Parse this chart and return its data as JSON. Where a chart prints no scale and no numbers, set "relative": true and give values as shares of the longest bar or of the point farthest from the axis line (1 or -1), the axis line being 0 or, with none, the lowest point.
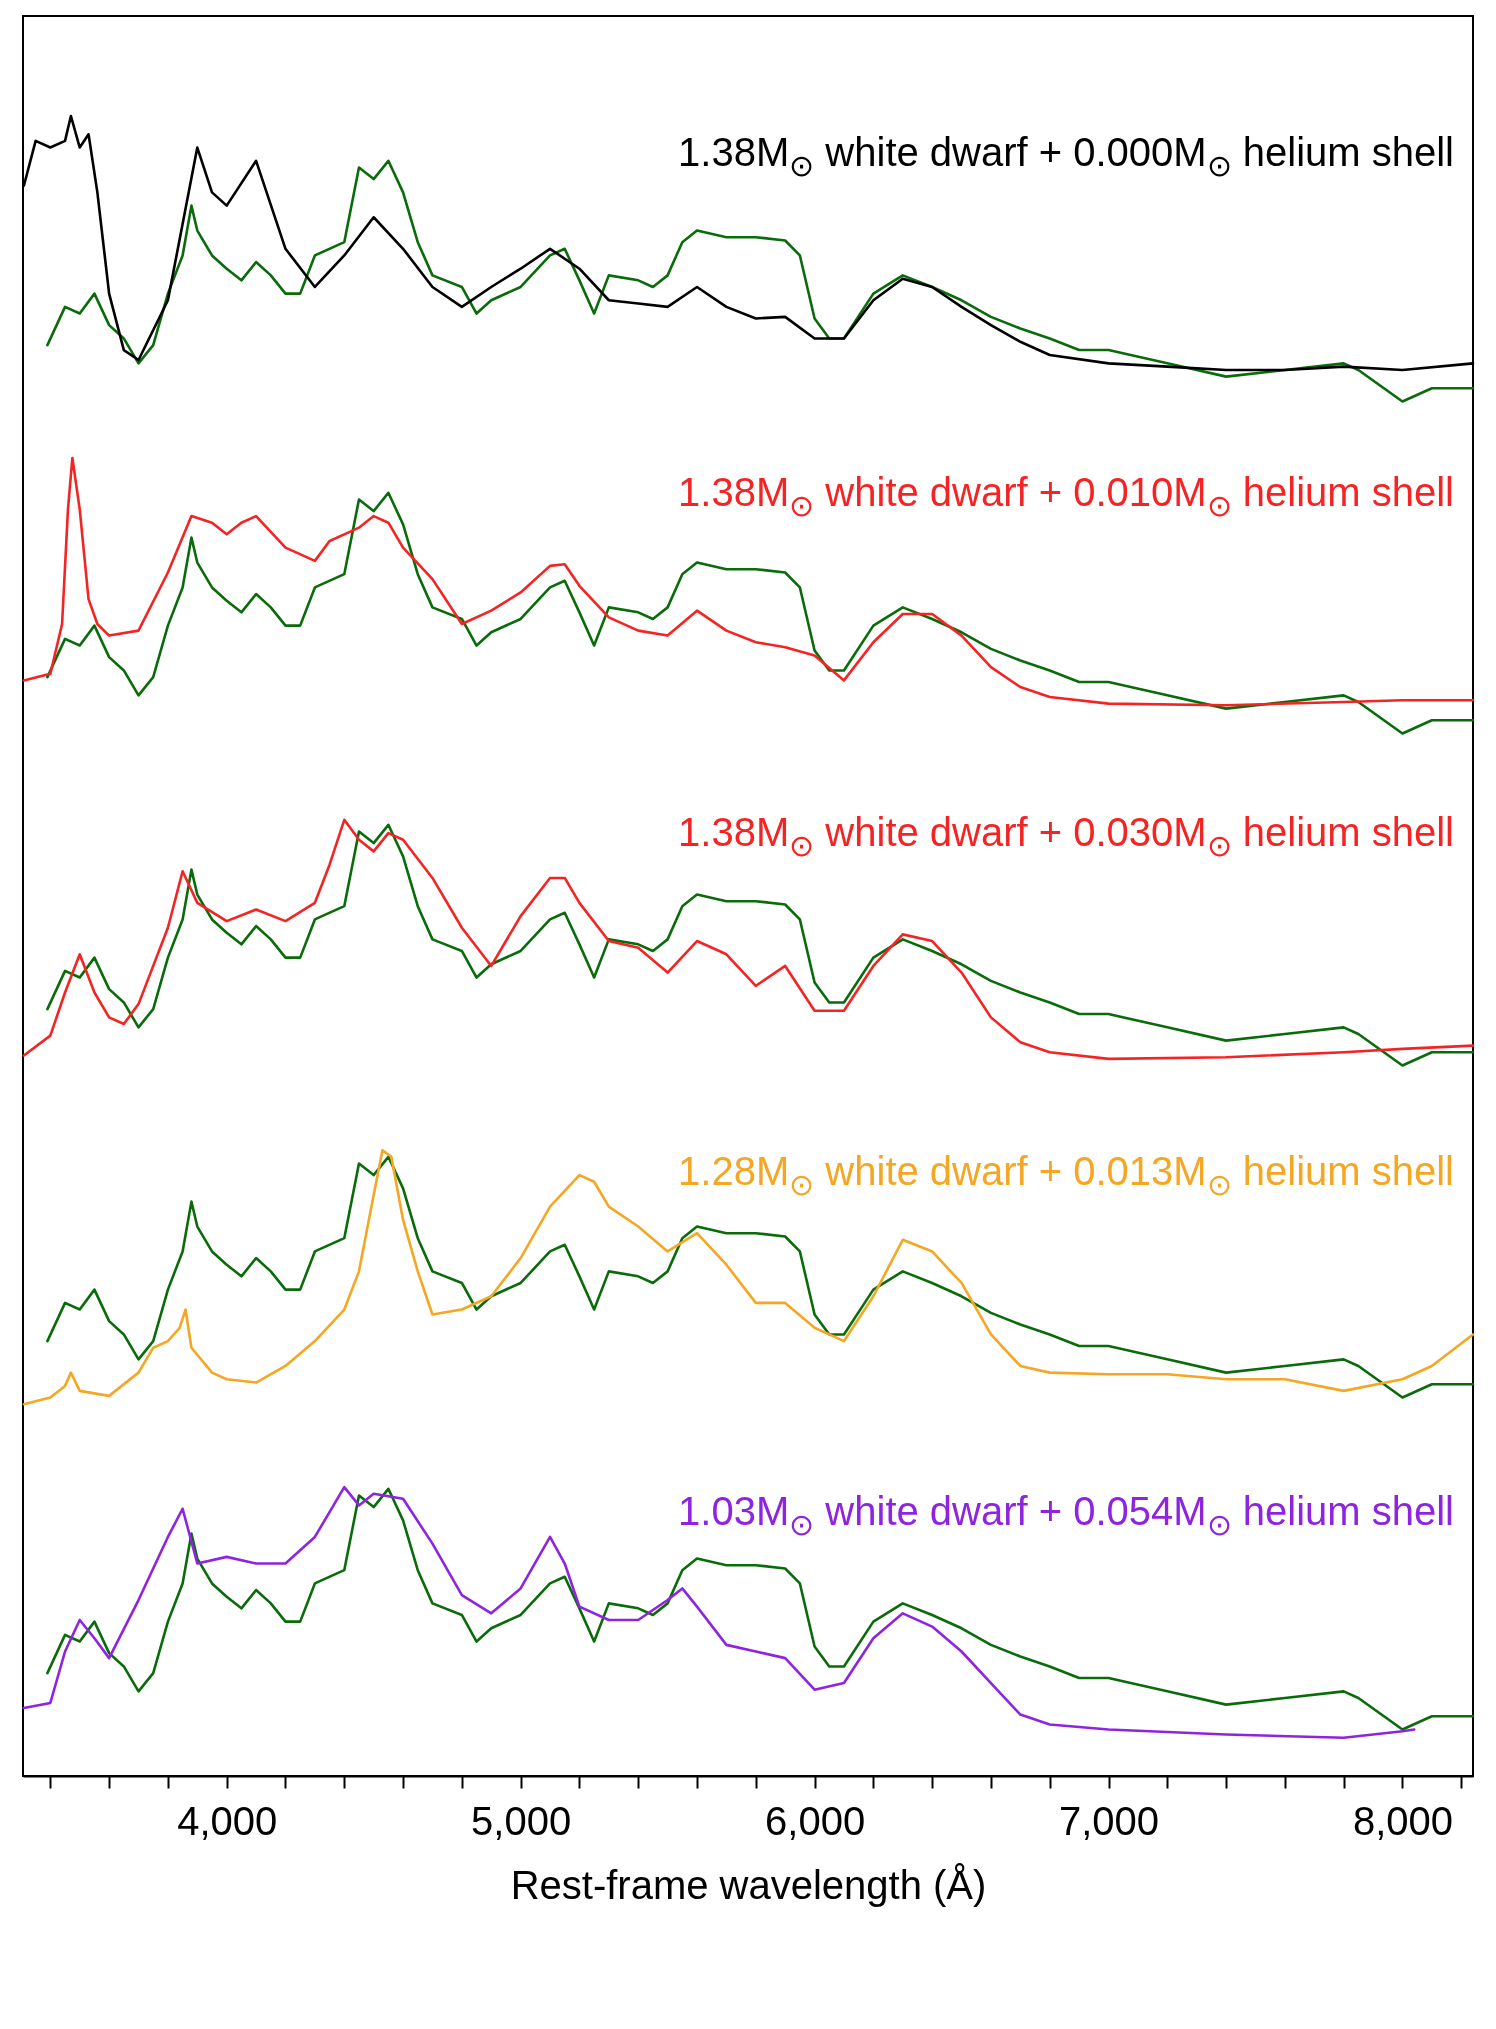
{
  "chart_data": {
    "type": "line",
    "relative": true,
    "xlabel": "Rest-frame wavelength (Å)",
    "xlim": [
      3307,
      8240
    ],
    "xticks": [
      {
        "value": 3400,
        "label": null
      },
      {
        "value": 3600,
        "label": null
      },
      {
        "value": 3800,
        "label": null
      },
      {
        "value": 4000,
        "label": "4,000"
      },
      {
        "value": 4200,
        "label": null
      },
      {
        "value": 4400,
        "label": null
      },
      {
        "value": 4600,
        "label": null
      },
      {
        "value": 4800,
        "label": null
      },
      {
        "value": 5000,
        "label": "5,000"
      },
      {
        "value": 5200,
        "label": null
      },
      {
        "value": 5400,
        "label": null
      },
      {
        "value": 5600,
        "label": null
      },
      {
        "value": 5800,
        "label": null
      },
      {
        "value": 6000,
        "label": "6,000"
      },
      {
        "value": 6200,
        "label": null
      },
      {
        "value": 6400,
        "label": null
      },
      {
        "value": 6600,
        "label": null
      },
      {
        "value": 6800,
        "label": null
      },
      {
        "value": 7000,
        "label": "7,000"
      },
      {
        "value": 7200,
        "label": null
      },
      {
        "value": 7400,
        "label": null
      },
      {
        "value": 7600,
        "label": null
      },
      {
        "value": 7800,
        "label": null
      },
      {
        "value": 8000,
        "label": "8,000"
      },
      {
        "value": 8200,
        "label": null
      }
    ],
    "x": [
      3390,
      3450,
      3500,
      3550,
      3600,
      3650,
      3700,
      3750,
      3800,
      3850,
      3880,
      3900,
      3950,
      4000,
      4050,
      4100,
      4150,
      4200,
      4250,
      4300,
      4400,
      4450,
      4500,
      4550,
      4600,
      4650,
      4700,
      4800,
      4850,
      4900,
      5000,
      5100,
      5150,
      5200,
      5250,
      5300,
      5400,
      5450,
      5500,
      5550,
      5600,
      5700,
      5800,
      5900,
      5950,
      6000,
      6050,
      6100,
      6200,
      6300,
      6400,
      6500,
      6600,
      6700,
      6800,
      6900,
      7000,
      7200,
      7400,
      7600,
      7800,
      7850,
      8000,
      8100,
      8240
    ],
    "line_style": "solid",
    "marker": "none",
    "series": [
      {
        "color": "#0a6b0a",
        "values": [
          0.862,
          0.885,
          0.881,
          0.893,
          0.874,
          0.866,
          0.851,
          0.862,
          0.893,
          0.916,
          0.946,
          0.931,
          0.916,
          0.908,
          0.901,
          0.912,
          0.904,
          0.893,
          0.893,
          0.916,
          0.924,
          0.969,
          0.962,
          0.973,
          0.954,
          0.924,
          0.904,
          0.897,
          0.881,
          0.889,
          0.897,
          0.916,
          0.92,
          0.901,
          0.881,
          0.904,
          0.901,
          0.897,
          0.904,
          0.924,
          0.931,
          0.927,
          0.927,
          0.925,
          0.916,
          0.878,
          0.866,
          0.866,
          0.893,
          0.904,
          0.897,
          0.889,
          0.879,
          0.872,
          0.866,
          0.859,
          0.859,
          0.851,
          0.843,
          0.847,
          0.851,
          0.847,
          0.828,
          0.836,
          0.836
        ]
      },
      {
        "name": "1.38M$_{⊙}$ white dwarf + 0.000M$_{⊙}$ helium shell",
        "color": "#000000",
        "x": [
          3310,
          3350,
          3400,
          3450,
          3470,
          3500,
          3530,
          3560,
          3600,
          3650,
          3700,
          3800,
          3900,
          3950,
          4000,
          4100,
          4200,
          4300,
          4400,
          4500,
          4600,
          4700,
          4800,
          4900,
          5000,
          5100,
          5200,
          5300,
          5400,
          5500,
          5600,
          5700,
          5800,
          5900,
          6000,
          6100,
          6200,
          6300,
          6400,
          6500,
          6600,
          6700,
          6800,
          7000,
          7200,
          7400,
          7600,
          7800,
          8000,
          8240
        ],
        "values": [
          0.958,
          0.985,
          0.981,
          0.985,
          1.0,
          0.981,
          0.989,
          0.954,
          0.893,
          0.859,
          0.853,
          0.889,
          0.981,
          0.954,
          0.946,
          0.973,
          0.92,
          0.897,
          0.916,
          0.939,
          0.92,
          0.897,
          0.885,
          0.897,
          0.908,
          0.92,
          0.908,
          0.889,
          0.887,
          0.885,
          0.897,
          0.885,
          0.878,
          0.879,
          0.866,
          0.866,
          0.889,
          0.902,
          0.897,
          0.885,
          0.874,
          0.864,
          0.856,
          0.851,
          0.849,
          0.847,
          0.847,
          0.849,
          0.847,
          0.851
        ]
      },
      {
        "color": "#0a6b0a",
        "values": [
          0.662,
          0.685,
          0.681,
          0.693,
          0.674,
          0.666,
          0.651,
          0.662,
          0.693,
          0.716,
          0.746,
          0.731,
          0.716,
          0.708,
          0.701,
          0.712,
          0.704,
          0.693,
          0.693,
          0.716,
          0.724,
          0.769,
          0.762,
          0.773,
          0.754,
          0.724,
          0.704,
          0.697,
          0.681,
          0.689,
          0.697,
          0.716,
          0.72,
          0.701,
          0.681,
          0.704,
          0.701,
          0.697,
          0.704,
          0.724,
          0.731,
          0.727,
          0.727,
          0.725,
          0.716,
          0.678,
          0.666,
          0.666,
          0.693,
          0.704,
          0.697,
          0.689,
          0.679,
          0.672,
          0.666,
          0.659,
          0.659,
          0.651,
          0.643,
          0.647,
          0.651,
          0.647,
          0.628,
          0.636,
          0.636
        ]
      },
      {
        "name": "1.38M$_{⊙}$ white dwarf + 0.010M$_{⊙}$ helium shell",
        "color": "#f42424",
        "x": [
          3310,
          3400,
          3440,
          3460,
          3475,
          3500,
          3530,
          3560,
          3600,
          3700,
          3800,
          3880,
          3950,
          4000,
          4050,
          4100,
          4200,
          4300,
          4350,
          4400,
          4450,
          4500,
          4550,
          4600,
          4700,
          4800,
          4900,
          5000,
          5100,
          5150,
          5200,
          5300,
          5400,
          5500,
          5600,
          5700,
          5800,
          5900,
          6000,
          6100,
          6200,
          6300,
          6400,
          6500,
          6600,
          6700,
          6800,
          7000,
          7400,
          7800,
          8000,
          8240
        ],
        "values": [
          0.66,
          0.664,
          0.694,
          0.763,
          0.794,
          0.763,
          0.709,
          0.694,
          0.687,
          0.69,
          0.725,
          0.759,
          0.755,
          0.748,
          0.755,
          0.759,
          0.74,
          0.732,
          0.744,
          0.748,
          0.752,
          0.759,
          0.755,
          0.74,
          0.721,
          0.694,
          0.702,
          0.713,
          0.729,
          0.73,
          0.717,
          0.698,
          0.69,
          0.687,
          0.702,
          0.69,
          0.683,
          0.68,
          0.675,
          0.66,
          0.683,
          0.7,
          0.7,
          0.687,
          0.668,
          0.656,
          0.65,
          0.646,
          0.645,
          0.647,
          0.648,
          0.648
        ]
      },
      {
        "color": "#0a6b0a",
        "values": [
          0.462,
          0.485,
          0.481,
          0.493,
          0.474,
          0.466,
          0.451,
          0.462,
          0.493,
          0.516,
          0.546,
          0.531,
          0.516,
          0.508,
          0.501,
          0.512,
          0.504,
          0.493,
          0.493,
          0.516,
          0.524,
          0.569,
          0.562,
          0.573,
          0.554,
          0.524,
          0.504,
          0.497,
          0.481,
          0.489,
          0.497,
          0.516,
          0.52,
          0.501,
          0.481,
          0.504,
          0.501,
          0.497,
          0.504,
          0.524,
          0.531,
          0.527,
          0.527,
          0.525,
          0.516,
          0.478,
          0.466,
          0.466,
          0.493,
          0.504,
          0.497,
          0.489,
          0.479,
          0.472,
          0.466,
          0.459,
          0.459,
          0.451,
          0.443,
          0.447,
          0.451,
          0.447,
          0.428,
          0.436,
          0.436
        ]
      },
      {
        "name": "1.38M$_{⊙}$ white dwarf + 0.030M$_{⊙}$ helium shell",
        "color": "#f42424",
        "x": [
          3310,
          3400,
          3450,
          3500,
          3550,
          3600,
          3650,
          3700,
          3800,
          3850,
          3900,
          4000,
          4100,
          4200,
          4300,
          4350,
          4400,
          4450,
          4500,
          4550,
          4600,
          4700,
          4800,
          4900,
          5000,
          5100,
          5150,
          5200,
          5300,
          5400,
          5500,
          5600,
          5700,
          5800,
          5900,
          6000,
          6100,
          6200,
          6300,
          6400,
          6500,
          6600,
          6700,
          6800,
          7000,
          7400,
          7800,
          8000,
          8240
        ],
        "values": [
          0.434,
          0.446,
          0.472,
          0.495,
          0.472,
          0.457,
          0.453,
          0.465,
          0.511,
          0.545,
          0.526,
          0.515,
          0.522,
          0.515,
          0.526,
          0.549,
          0.576,
          0.564,
          0.557,
          0.568,
          0.564,
          0.541,
          0.511,
          0.488,
          0.518,
          0.541,
          0.541,
          0.526,
          0.503,
          0.499,
          0.484,
          0.503,
          0.495,
          0.476,
          0.488,
          0.461,
          0.461,
          0.488,
          0.507,
          0.503,
          0.484,
          0.457,
          0.442,
          0.436,
          0.432,
          0.433,
          0.436,
          0.438,
          0.44
        ]
      },
      {
        "color": "#0a6b0a",
        "values": [
          0.262,
          0.285,
          0.281,
          0.293,
          0.274,
          0.266,
          0.251,
          0.262,
          0.293,
          0.316,
          0.346,
          0.331,
          0.316,
          0.308,
          0.301,
          0.312,
          0.304,
          0.293,
          0.293,
          0.316,
          0.324,
          0.369,
          0.362,
          0.373,
          0.354,
          0.324,
          0.304,
          0.297,
          0.281,
          0.289,
          0.297,
          0.316,
          0.32,
          0.301,
          0.281,
          0.304,
          0.301,
          0.297,
          0.304,
          0.324,
          0.331,
          0.327,
          0.327,
          0.325,
          0.316,
          0.278,
          0.266,
          0.266,
          0.293,
          0.304,
          0.297,
          0.289,
          0.279,
          0.272,
          0.266,
          0.259,
          0.259,
          0.251,
          0.243,
          0.247,
          0.251,
          0.247,
          0.228,
          0.236,
          0.236
        ]
      },
      {
        "name": "1.28M$_{⊙}$ white dwarf + 0.013M$_{⊙}$ helium shell",
        "color": "#f5a623",
        "x": [
          3310,
          3400,
          3450,
          3470,
          3500,
          3600,
          3700,
          3750,
          3800,
          3840,
          3860,
          3880,
          3950,
          4000,
          4100,
          4200,
          4300,
          4400,
          4450,
          4500,
          4530,
          4560,
          4600,
          4650,
          4700,
          4800,
          4900,
          5000,
          5100,
          5200,
          5250,
          5300,
          5400,
          5500,
          5600,
          5700,
          5800,
          5900,
          6000,
          6100,
          6200,
          6300,
          6400,
          6500,
          6600,
          6700,
          6800,
          7000,
          7200,
          7400,
          7600,
          7800,
          8000,
          8100,
          8240
        ],
        "values": [
          0.224,
          0.228,
          0.235,
          0.243,
          0.232,
          0.229,
          0.243,
          0.258,
          0.262,
          0.27,
          0.281,
          0.258,
          0.243,
          0.239,
          0.237,
          0.247,
          0.262,
          0.281,
          0.304,
          0.35,
          0.377,
          0.373,
          0.335,
          0.304,
          0.278,
          0.281,
          0.289,
          0.312,
          0.343,
          0.362,
          0.358,
          0.343,
          0.331,
          0.316,
          0.327,
          0.308,
          0.285,
          0.285,
          0.27,
          0.262,
          0.289,
          0.323,
          0.316,
          0.297,
          0.266,
          0.247,
          0.243,
          0.242,
          0.242,
          0.239,
          0.239,
          0.232,
          0.239,
          0.247,
          0.266
        ]
      },
      {
        "color": "#0a6b0a",
        "values": [
          0.062,
          0.085,
          0.081,
          0.093,
          0.074,
          0.066,
          0.051,
          0.062,
          0.093,
          0.116,
          0.146,
          0.131,
          0.116,
          0.108,
          0.101,
          0.112,
          0.104,
          0.093,
          0.093,
          0.116,
          0.124,
          0.169,
          0.162,
          0.173,
          0.154,
          0.124,
          0.104,
          0.097,
          0.081,
          0.089,
          0.097,
          0.116,
          0.12,
          0.101,
          0.081,
          0.104,
          0.101,
          0.097,
          0.104,
          0.124,
          0.131,
          0.127,
          0.127,
          0.125,
          0.116,
          0.078,
          0.066,
          0.066,
          0.093,
          0.104,
          0.097,
          0.089,
          0.079,
          0.072,
          0.066,
          0.059,
          0.059,
          0.051,
          0.043,
          0.047,
          0.051,
          0.047,
          0.028,
          0.036,
          0.036
        ]
      },
      {
        "name": "1.03M$_{⊙}$ white dwarf + 0.054M$_{⊙}$ helium shell",
        "color": "#8e24e0",
        "x": [
          3310,
          3400,
          3450,
          3500,
          3550,
          3600,
          3700,
          3800,
          3850,
          3900,
          4000,
          4100,
          4200,
          4300,
          4400,
          4450,
          4500,
          4600,
          4700,
          4800,
          4900,
          5000,
          5100,
          5150,
          5200,
          5300,
          5400,
          5500,
          5550,
          5600,
          5700,
          5800,
          5900,
          6000,
          6100,
          6200,
          6300,
          6400,
          6500,
          6600,
          6700,
          6800,
          7000,
          7400,
          7800,
          8000,
          8040
        ],
        "values": [
          0.041,
          0.044,
          0.075,
          0.094,
          0.083,
          0.071,
          0.106,
          0.144,
          0.161,
          0.128,
          0.132,
          0.128,
          0.128,
          0.144,
          0.174,
          0.163,
          0.17,
          0.167,
          0.14,
          0.109,
          0.098,
          0.113,
          0.144,
          0.128,
          0.102,
          0.094,
          0.094,
          0.106,
          0.113,
          0.102,
          0.079,
          0.075,
          0.071,
          0.052,
          0.056,
          0.083,
          0.098,
          0.09,
          0.075,
          0.056,
          0.037,
          0.031,
          0.028,
          0.025,
          0.023,
          0.027,
          0.028
        ]
      }
    ]
  }
}
